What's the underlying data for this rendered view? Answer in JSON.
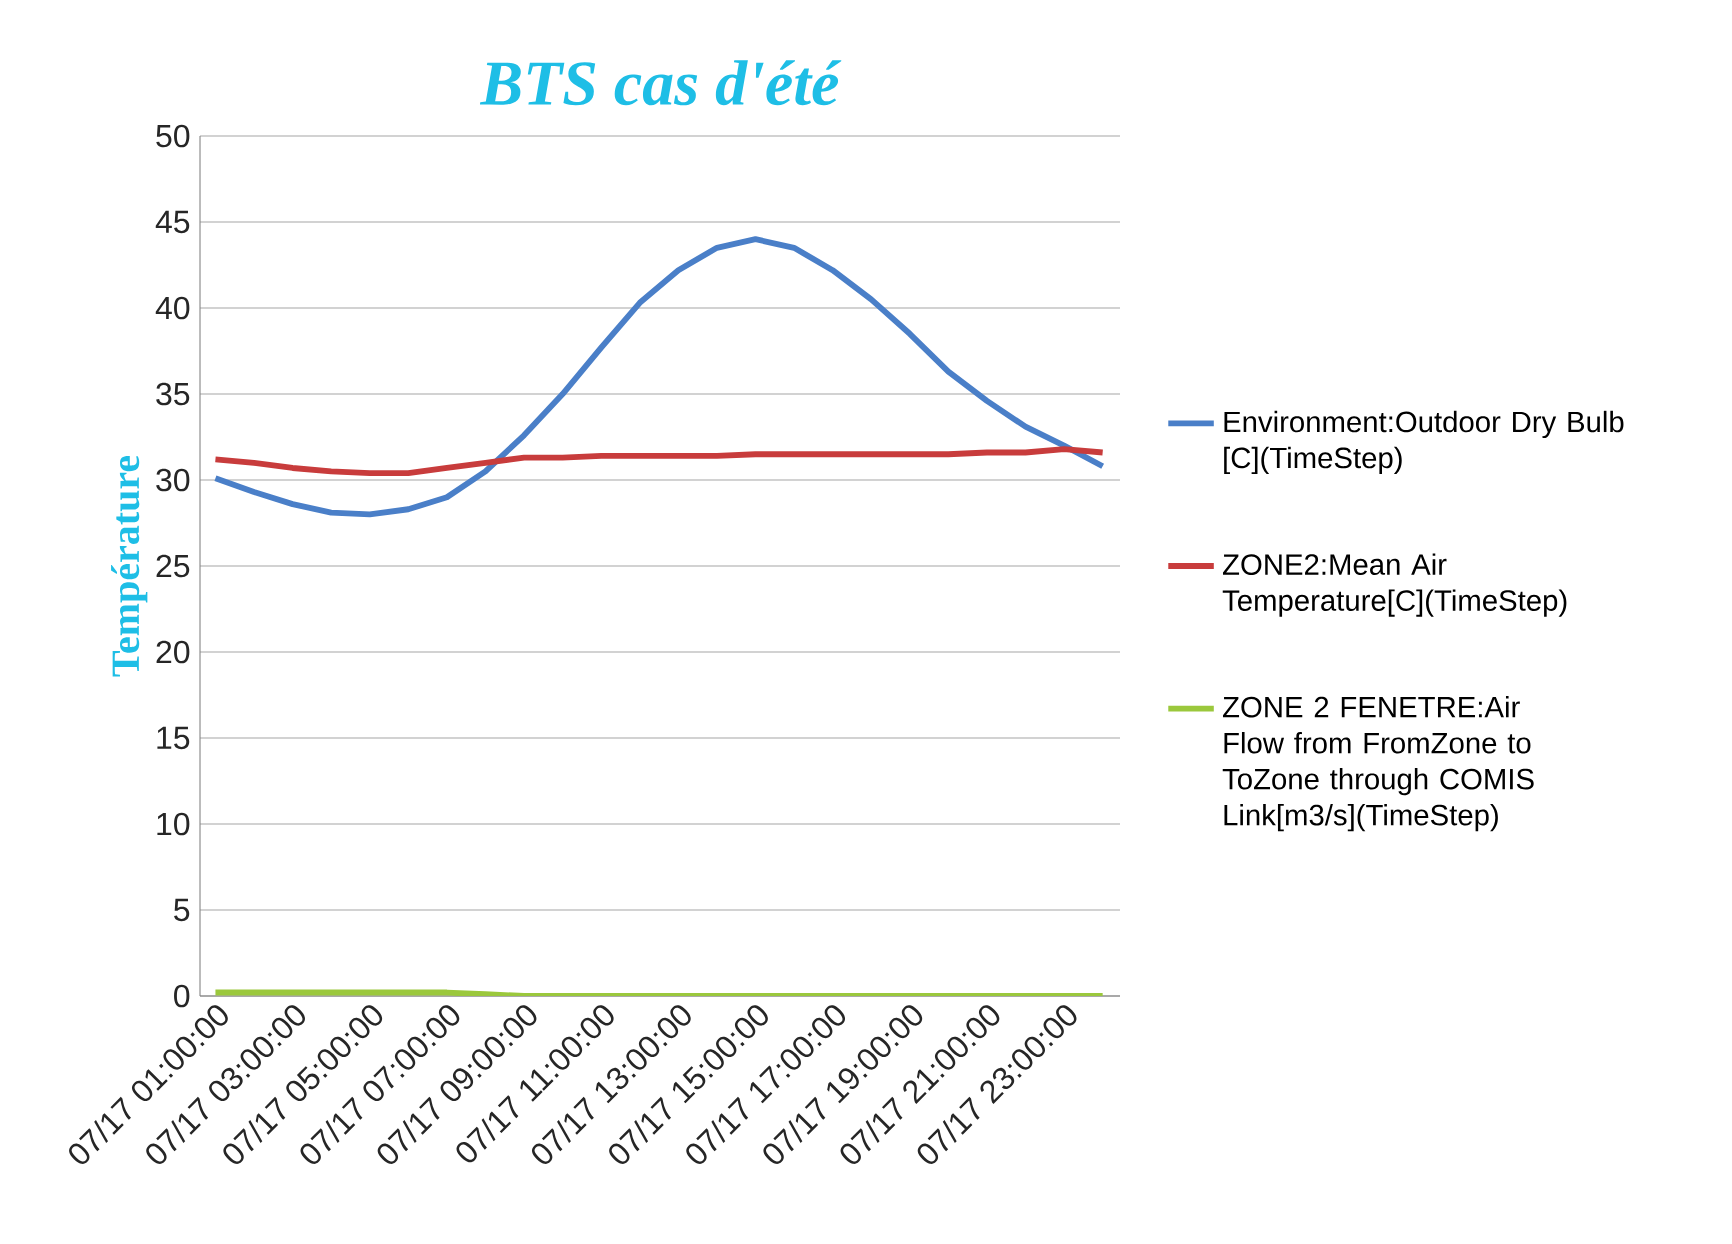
{
  "chart_data": {
    "type": "line",
    "title": "BTS cas d'été",
    "ylabel": "Température",
    "categories": [
      "07/17 01:00:00",
      null,
      "07/17 03:00:00",
      null,
      "07/17 05:00:00",
      null,
      "07/17 07:00:00",
      null,
      "07/17 09:00:00",
      null,
      "07/17 11:00:00",
      null,
      "07/17 13:00:00",
      null,
      "07/17 15:00:00",
      null,
      "07/17 17:00:00",
      null,
      "07/17 19:00:00",
      null,
      "07/17 21:00:00",
      null,
      "07/17 23:00:00",
      null
    ],
    "series": [
      {
        "name": "Environment:Outdoor Dry Bulb [C](TimeStep)",
        "color": "#4a7fc8",
        "values": [
          30.1,
          29.3,
          28.6,
          28.1,
          28.0,
          28.3,
          29.0,
          30.5,
          32.6,
          35.0,
          37.7,
          40.3,
          42.2,
          43.5,
          44.0,
          43.5,
          42.2,
          40.5,
          38.5,
          36.3,
          34.6,
          33.1,
          32.0,
          30.8
        ]
      },
      {
        "name": "ZONE2:Mean Air Temperature[C](TimeStep)",
        "color": "#c83c3c",
        "values": [
          31.2,
          31.0,
          30.7,
          30.5,
          30.4,
          30.4,
          30.7,
          31.0,
          31.3,
          31.3,
          31.4,
          31.4,
          31.4,
          31.4,
          31.5,
          31.5,
          31.5,
          31.5,
          31.5,
          31.5,
          31.6,
          31.6,
          31.8,
          31.6
        ]
      },
      {
        "name": "ZONE 2 FENETRE:Air Flow from FromZone to ToZone through COMIS Link[m3/s](TimeStep)",
        "color": "#9bc83c",
        "values": [
          0.2,
          0.2,
          0.2,
          0.2,
          0.2,
          0.2,
          0.2,
          0.1,
          0,
          0,
          0,
          0,
          0,
          0,
          0,
          0,
          0,
          0,
          0,
          0,
          0,
          0,
          0,
          0
        ]
      }
    ],
    "ylim": [
      0,
      50
    ],
    "yticks": [
      0,
      5,
      10,
      15,
      20,
      25,
      30,
      35,
      40,
      45,
      50
    ],
    "grid": "y",
    "legend": "right"
  }
}
